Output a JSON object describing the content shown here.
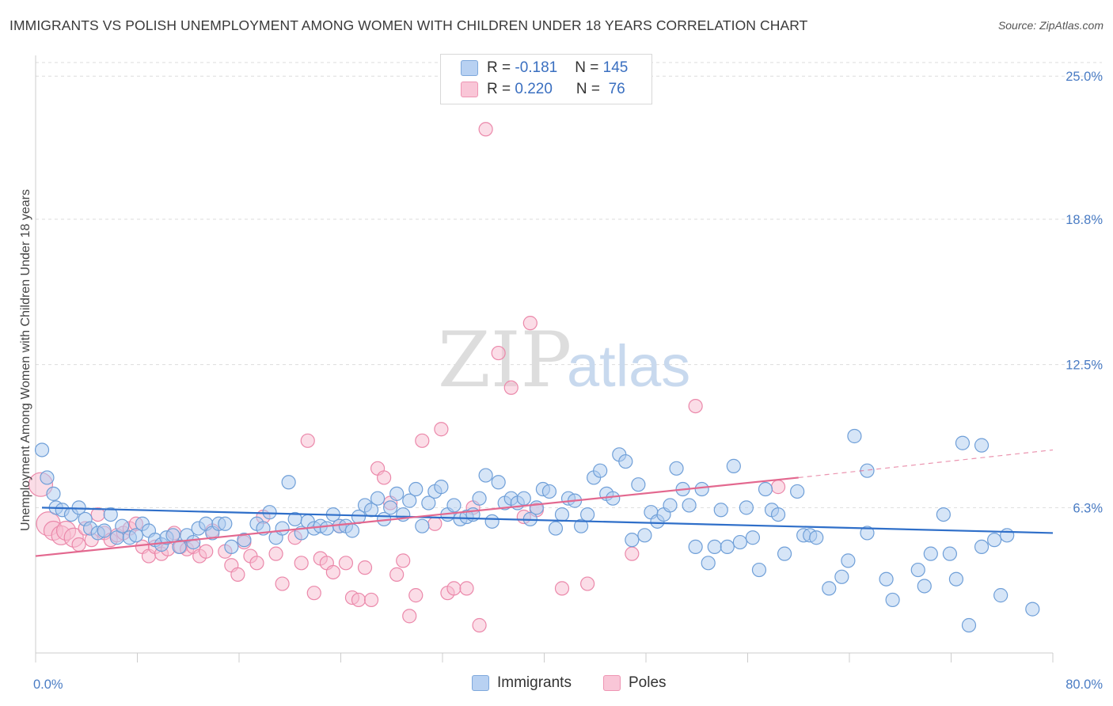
{
  "title": "IMMIGRANTS VS POLISH UNEMPLOYMENT AMONG WOMEN WITH CHILDREN UNDER 18 YEARS CORRELATION CHART",
  "source": "Source: ZipAtlas.com",
  "watermark": {
    "zip": "ZIP",
    "atlas": "atlas"
  },
  "legend": {
    "rows": [
      {
        "r_label": "R = ",
        "r_value": "-0.181",
        "n_label": "N = ",
        "n_value": "145"
      },
      {
        "r_label": "R = ",
        "r_value": "0.220",
        "n_label": "N = ",
        "n_value": " 76"
      }
    ]
  },
  "bottom_legend": {
    "immigrants": "Immigrants",
    "poles": "Poles"
  },
  "colors": {
    "immigrants_fill": "#aecbf0",
    "immigrants_stroke": "#6f9fd8",
    "immigrants_line": "#2f6fc9",
    "poles_fill": "#f7bcd0",
    "poles_stroke": "#eb88aa",
    "poles_line": "#e3688f",
    "tick_label": "#4a7cc4",
    "grid": "#dddddd"
  },
  "chart_data": {
    "type": "scatter",
    "title": "IMMIGRANTS VS POLISH UNEMPLOYMENT AMONG WOMEN WITH CHILDREN UNDER 18 YEARS CORRELATION CHART",
    "xlabel": "",
    "ylabel": "Unemployment Among Women with Children Under 18 years",
    "xlim": [
      0,
      80
    ],
    "ylim": [
      0,
      25.0
    ],
    "x_tick_labels": [
      "0.0%",
      "80.0%"
    ],
    "y_ticks": [
      6.3,
      12.5,
      18.8,
      25.0
    ],
    "y_tick_labels": [
      "6.3%",
      "12.5%",
      "18.8%",
      "25.0%"
    ],
    "grid": "horizontal dashed",
    "legend_position": "top-center",
    "series": [
      {
        "name": "Immigrants",
        "r": -0.181,
        "n": 145,
        "trend": {
          "x0": 0.5,
          "y0": 6.3,
          "x1": 80,
          "y1": 5.2
        },
        "points": [
          [
            0.5,
            8.8
          ],
          [
            0.9,
            7.6
          ],
          [
            1.4,
            6.9
          ],
          [
            1.6,
            6.3
          ],
          [
            2.1,
            6.2
          ],
          [
            2.8,
            6.0
          ],
          [
            3.4,
            6.3
          ],
          [
            3.9,
            5.8
          ],
          [
            4.3,
            5.4
          ],
          [
            4.9,
            5.2
          ],
          [
            5.4,
            5.3
          ],
          [
            5.9,
            6.0
          ],
          [
            6.4,
            5.0
          ],
          [
            6.8,
            5.5
          ],
          [
            7.4,
            5.0
          ],
          [
            7.9,
            5.1
          ],
          [
            8.4,
            5.6
          ],
          [
            8.9,
            5.3
          ],
          [
            9.4,
            4.9
          ],
          [
            9.9,
            4.7
          ],
          [
            10.3,
            5.0
          ],
          [
            10.8,
            5.1
          ],
          [
            11.3,
            4.6
          ],
          [
            11.9,
            5.1
          ],
          [
            12.4,
            4.8
          ],
          [
            12.8,
            5.4
          ],
          [
            13.4,
            5.6
          ],
          [
            13.9,
            5.2
          ],
          [
            14.4,
            5.6
          ],
          [
            14.9,
            5.6
          ],
          [
            15.4,
            4.6
          ],
          [
            16.4,
            4.9
          ],
          [
            17.4,
            5.6
          ],
          [
            17.9,
            5.4
          ],
          [
            18.4,
            6.1
          ],
          [
            18.9,
            5.0
          ],
          [
            19.4,
            5.4
          ],
          [
            19.9,
            7.4
          ],
          [
            20.4,
            5.8
          ],
          [
            20.9,
            5.2
          ],
          [
            21.4,
            5.7
          ],
          [
            21.9,
            5.4
          ],
          [
            22.4,
            5.5
          ],
          [
            22.9,
            5.4
          ],
          [
            23.4,
            6.0
          ],
          [
            23.9,
            5.5
          ],
          [
            24.4,
            5.5
          ],
          [
            24.9,
            5.3
          ],
          [
            25.4,
            5.9
          ],
          [
            25.9,
            6.4
          ],
          [
            26.4,
            6.2
          ],
          [
            26.9,
            6.7
          ],
          [
            27.4,
            5.8
          ],
          [
            27.9,
            6.3
          ],
          [
            28.4,
            6.9
          ],
          [
            28.9,
            6.0
          ],
          [
            29.4,
            6.6
          ],
          [
            29.9,
            7.1
          ],
          [
            30.4,
            5.5
          ],
          [
            30.9,
            6.5
          ],
          [
            31.4,
            7.0
          ],
          [
            31.9,
            7.2
          ],
          [
            32.4,
            6.0
          ],
          [
            32.9,
            6.4
          ],
          [
            33.4,
            5.8
          ],
          [
            33.9,
            5.9
          ],
          [
            34.4,
            6.0
          ],
          [
            34.9,
            6.7
          ],
          [
            35.4,
            7.7
          ],
          [
            35.9,
            5.7
          ],
          [
            36.4,
            7.4
          ],
          [
            36.9,
            6.5
          ],
          [
            37.4,
            6.7
          ],
          [
            37.9,
            6.5
          ],
          [
            38.4,
            6.7
          ],
          [
            38.9,
            5.8
          ],
          [
            39.4,
            6.3
          ],
          [
            39.9,
            7.1
          ],
          [
            40.4,
            7.0
          ],
          [
            40.9,
            5.4
          ],
          [
            41.4,
            6.0
          ],
          [
            41.9,
            6.7
          ],
          [
            42.4,
            6.6
          ],
          [
            42.9,
            5.5
          ],
          [
            43.4,
            6.0
          ],
          [
            43.9,
            7.6
          ],
          [
            44.4,
            7.9
          ],
          [
            44.9,
            6.9
          ],
          [
            45.4,
            6.7
          ],
          [
            45.9,
            8.6
          ],
          [
            46.4,
            8.3
          ],
          [
            46.9,
            4.9
          ],
          [
            47.4,
            7.3
          ],
          [
            47.9,
            5.1
          ],
          [
            48.4,
            6.1
          ],
          [
            48.9,
            5.7
          ],
          [
            49.4,
            6.0
          ],
          [
            49.9,
            6.4
          ],
          [
            50.4,
            8.0
          ],
          [
            50.9,
            7.1
          ],
          [
            51.4,
            6.4
          ],
          [
            51.9,
            4.6
          ],
          [
            52.4,
            7.1
          ],
          [
            52.9,
            3.9
          ],
          [
            53.4,
            4.6
          ],
          [
            53.9,
            6.2
          ],
          [
            54.4,
            4.6
          ],
          [
            54.9,
            8.1
          ],
          [
            55.4,
            4.8
          ],
          [
            55.9,
            6.3
          ],
          [
            56.4,
            5.0
          ],
          [
            56.9,
            3.6
          ],
          [
            57.4,
            7.1
          ],
          [
            57.9,
            6.2
          ],
          [
            58.4,
            6.0
          ],
          [
            58.9,
            4.3
          ],
          [
            59.9,
            7.0
          ],
          [
            60.4,
            5.1
          ],
          [
            60.9,
            5.1
          ],
          [
            61.4,
            5.0
          ],
          [
            62.4,
            2.8
          ],
          [
            63.4,
            3.3
          ],
          [
            63.9,
            4.0
          ],
          [
            64.4,
            9.4
          ],
          [
            65.4,
            5.2
          ],
          [
            65.4,
            7.9
          ],
          [
            66.9,
            3.2
          ],
          [
            67.4,
            2.3
          ],
          [
            69.4,
            3.6
          ],
          [
            69.9,
            2.9
          ],
          [
            70.4,
            4.3
          ],
          [
            71.4,
            6.0
          ],
          [
            71.9,
            4.3
          ],
          [
            72.4,
            3.2
          ],
          [
            72.9,
            9.1
          ],
          [
            73.4,
            1.2
          ],
          [
            74.4,
            9.0
          ],
          [
            74.4,
            4.6
          ],
          [
            75.4,
            4.9
          ],
          [
            75.9,
            2.5
          ],
          [
            76.4,
            5.1
          ],
          [
            78.4,
            1.9
          ]
        ]
      },
      {
        "name": "Poles",
        "r": 0.22,
        "n": 76,
        "trend": {
          "x0": 0,
          "y0": 4.2,
          "x1": 60,
          "y1": 7.6,
          "dashed_to": {
            "x": 80,
            "y": 8.8
          }
        },
        "points": [
          [
            0.4,
            7.3
          ],
          [
            1.0,
            5.6
          ],
          [
            1.4,
            5.3
          ],
          [
            2.0,
            5.1
          ],
          [
            2.4,
            5.3
          ],
          [
            3.0,
            5.0
          ],
          [
            3.4,
            4.7
          ],
          [
            3.9,
            5.4
          ],
          [
            4.4,
            4.9
          ],
          [
            4.9,
            6.0
          ],
          [
            5.4,
            5.2
          ],
          [
            5.9,
            4.9
          ],
          [
            6.4,
            5.1
          ],
          [
            6.9,
            5.2
          ],
          [
            7.4,
            5.4
          ],
          [
            7.9,
            5.6
          ],
          [
            8.4,
            4.6
          ],
          [
            8.9,
            4.2
          ],
          [
            9.4,
            4.6
          ],
          [
            9.9,
            4.3
          ],
          [
            10.4,
            4.5
          ],
          [
            10.9,
            5.2
          ],
          [
            11.4,
            4.6
          ],
          [
            11.9,
            4.5
          ],
          [
            12.4,
            4.6
          ],
          [
            12.9,
            4.2
          ],
          [
            13.4,
            4.4
          ],
          [
            13.9,
            5.3
          ],
          [
            14.9,
            4.4
          ],
          [
            15.4,
            3.8
          ],
          [
            15.9,
            3.4
          ],
          [
            16.4,
            4.8
          ],
          [
            16.9,
            4.2
          ],
          [
            17.4,
            3.9
          ],
          [
            17.9,
            5.9
          ],
          [
            18.9,
            4.3
          ],
          [
            19.4,
            3.0
          ],
          [
            20.4,
            5.0
          ],
          [
            20.9,
            3.9
          ],
          [
            21.4,
            9.2
          ],
          [
            21.9,
            2.6
          ],
          [
            22.4,
            4.1
          ],
          [
            22.9,
            3.9
          ],
          [
            23.4,
            3.5
          ],
          [
            23.9,
            5.5
          ],
          [
            24.4,
            3.9
          ],
          [
            24.9,
            2.4
          ],
          [
            25.4,
            2.3
          ],
          [
            25.9,
            3.7
          ],
          [
            26.4,
            2.3
          ],
          [
            26.9,
            8.0
          ],
          [
            27.4,
            7.6
          ],
          [
            27.9,
            6.5
          ],
          [
            28.4,
            3.4
          ],
          [
            28.9,
            4.0
          ],
          [
            29.4,
            1.6
          ],
          [
            29.9,
            2.5
          ],
          [
            30.4,
            9.2
          ],
          [
            31.4,
            5.6
          ],
          [
            31.9,
            9.7
          ],
          [
            32.4,
            2.6
          ],
          [
            32.9,
            2.8
          ],
          [
            33.9,
            2.8
          ],
          [
            34.4,
            6.3
          ],
          [
            34.9,
            1.2
          ],
          [
            35.4,
            22.7
          ],
          [
            36.4,
            13.0
          ],
          [
            37.4,
            11.5
          ],
          [
            38.4,
            5.9
          ],
          [
            38.9,
            14.3
          ],
          [
            39.4,
            6.2
          ],
          [
            41.4,
            2.8
          ],
          [
            43.4,
            3.0
          ],
          [
            46.9,
            4.3
          ],
          [
            51.9,
            10.7
          ],
          [
            58.4,
            7.2
          ]
        ]
      }
    ]
  }
}
